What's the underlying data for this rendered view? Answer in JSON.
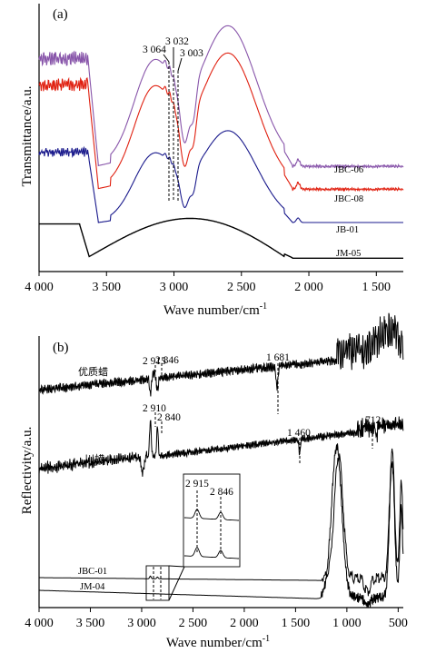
{
  "chart_data": [
    {
      "type": "line",
      "panel_label": "(a)",
      "xlabel": "Wave number/cm",
      "xlabel_sup": "-1",
      "ylabel": "Transmittance/a.u.",
      "xlim": [
        4000,
        1300
      ],
      "x_reversed": true,
      "x_ticks": [
        4000,
        3500,
        3000,
        2500,
        2000,
        1500
      ],
      "x_tick_labels": [
        "4 000",
        "3 500",
        "3 000",
        "2 500",
        "2 000",
        "1 500"
      ],
      "grid": false,
      "annotations": [
        {
          "text": "3 064",
          "x": 3064
        },
        {
          "text": "3 032",
          "x": 3032
        },
        {
          "text": "3 003",
          "x": 3003
        }
      ],
      "series": [
        {
          "name": "JBC-06",
          "color": "#8855aa",
          "offset": 0.86,
          "noise": true
        },
        {
          "name": "JBC-08",
          "color": "#e02010",
          "offset": 0.66,
          "noise": true
        },
        {
          "name": "JB-01",
          "color": "#1a1a8c",
          "offset": 0.45,
          "noise": true
        },
        {
          "name": "JM-05",
          "color": "#000000",
          "offset": 0.0,
          "noise": false
        }
      ]
    },
    {
      "type": "line",
      "panel_label": "(b)",
      "xlabel": "Wave number/cm",
      "xlabel_sup": "-1",
      "ylabel": "Reflectivity/a.u.",
      "xlim": [
        4000,
        450
      ],
      "x_reversed": true,
      "x_ticks": [
        4000,
        3500,
        3000,
        2500,
        2000,
        1500,
        1000,
        500
      ],
      "x_tick_labels": [
        "4 000",
        "3 500",
        "3 000",
        "2 500",
        "2 000",
        "1 500",
        "1 000",
        "500"
      ],
      "grid": false,
      "annotations": [
        {
          "text": "2 915",
          "x": 2915,
          "series": "优质蜡"
        },
        {
          "text": "2 846",
          "x": 2846,
          "series": "优质蜡"
        },
        {
          "text": "1 681",
          "x": 1681,
          "series": "优质蜡"
        },
        {
          "text": "2 910",
          "x": 2910,
          "series": "川蜡"
        },
        {
          "text": "2 840",
          "x": 2840,
          "series": "川蜡"
        },
        {
          "text": "1 460",
          "x": 1460,
          "series": "川蜡"
        },
        {
          "text": "712",
          "x": 712,
          "series": "川蜡"
        }
      ],
      "inset": {
        "labels": [
          "2 915",
          "2 846"
        ]
      },
      "series": [
        {
          "name": "优质蜡",
          "color": "#000000"
        },
        {
          "name": "川蜡",
          "color": "#000000"
        },
        {
          "name": "JBC-01",
          "color": "#000000"
        },
        {
          "name": "JM-04",
          "color": "#000000"
        }
      ]
    }
  ]
}
